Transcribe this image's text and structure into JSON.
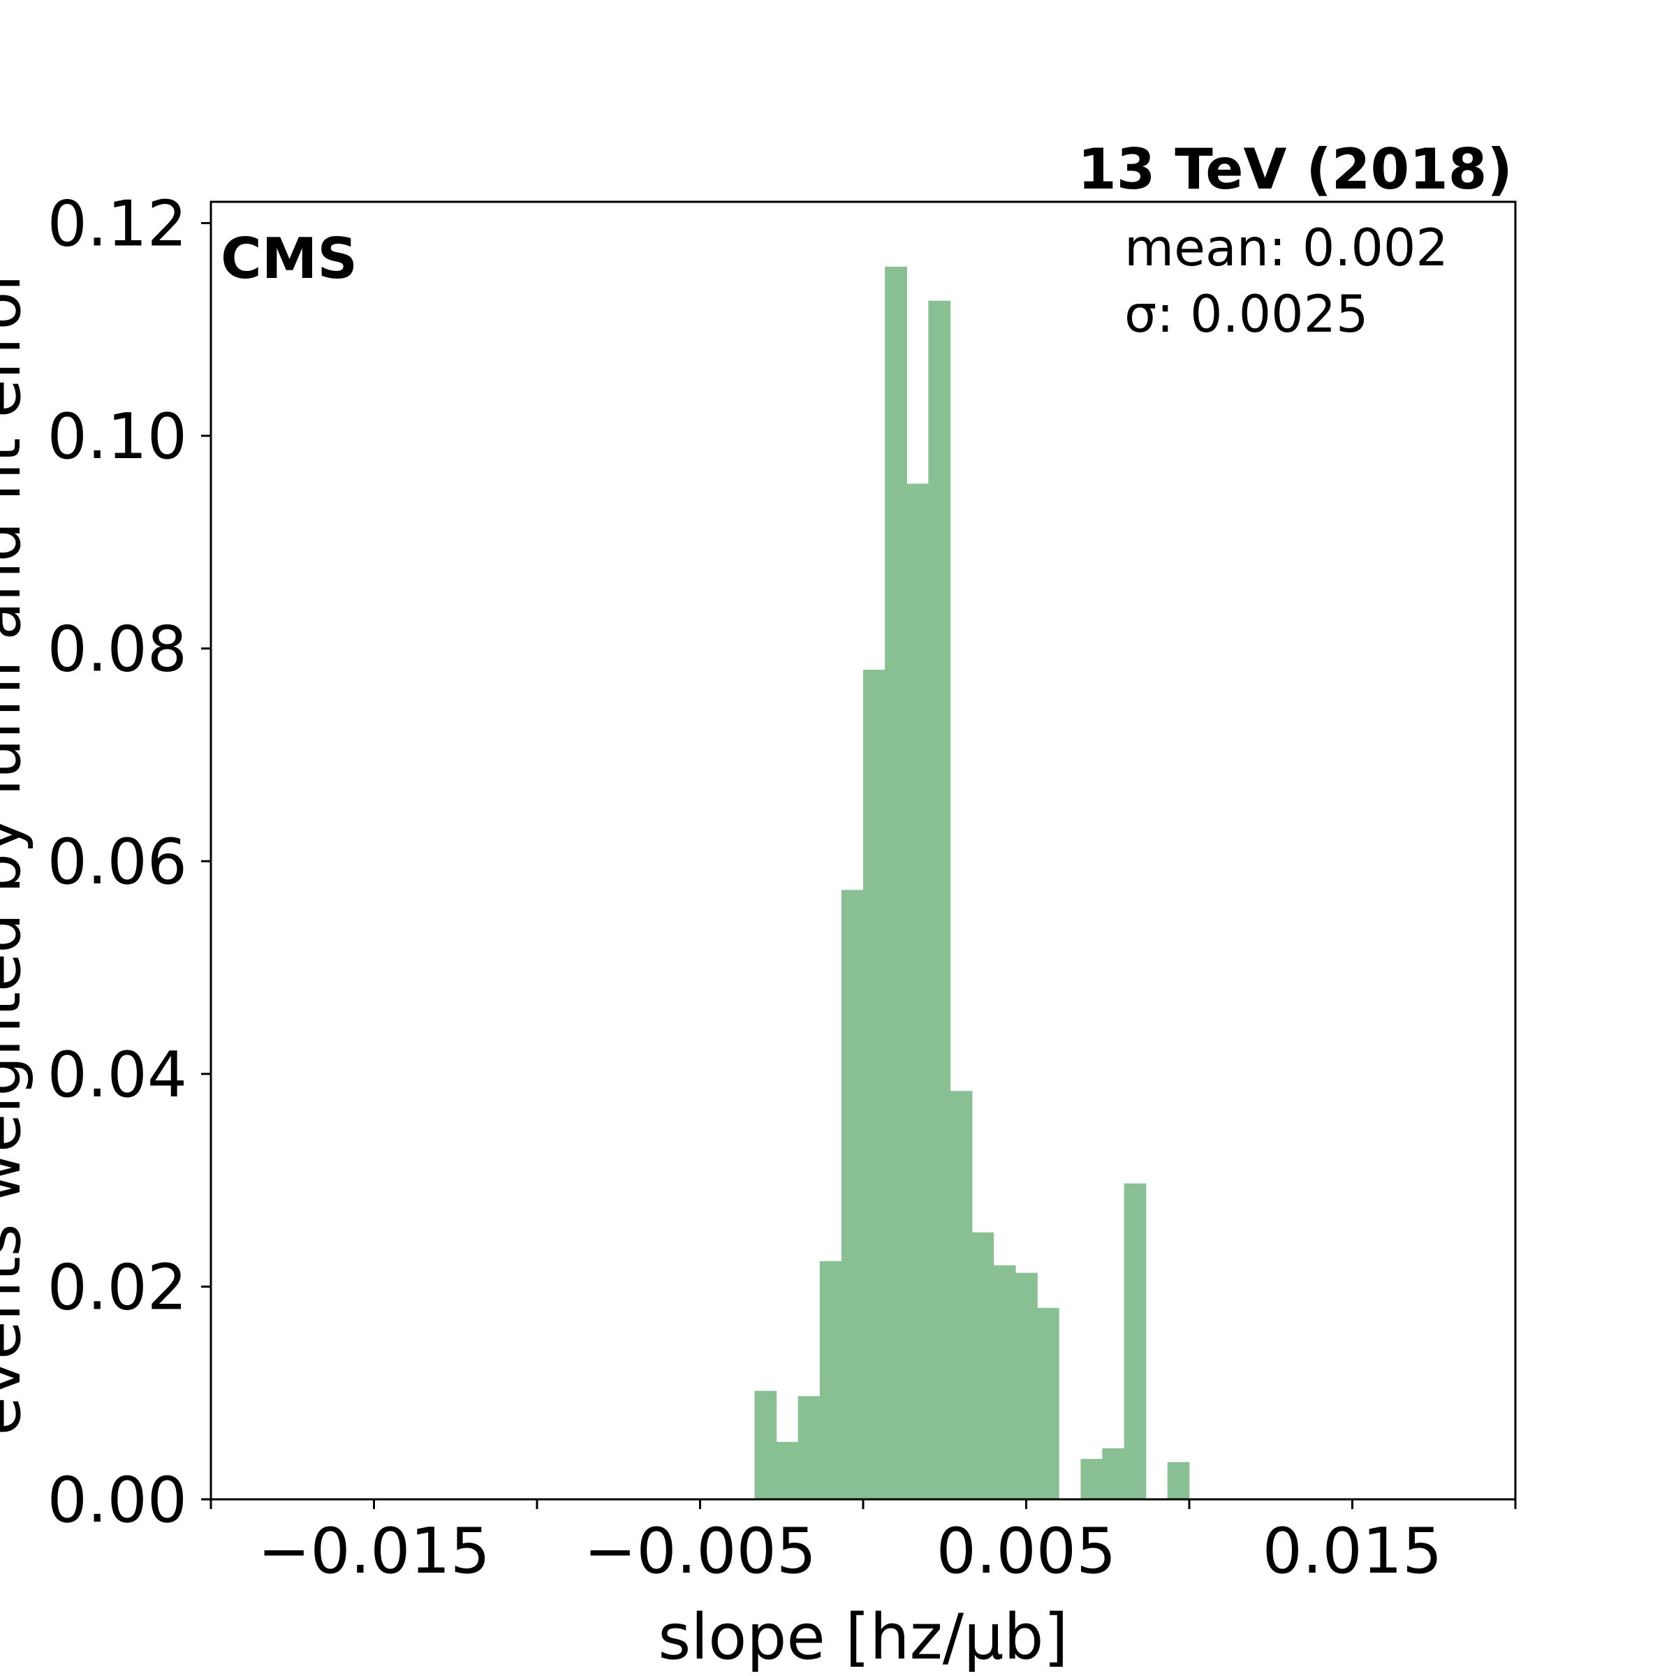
{
  "chart_data": {
    "type": "bar",
    "title": "13 TeV (2018)",
    "experiment_label": "CMS",
    "xlabel": "slope [hz/μb]",
    "ylabel": "events weighted by lumi and fit error",
    "xlim": [
      -0.02,
      0.02
    ],
    "ylim": [
      0,
      0.122
    ],
    "xticks": [
      -0.02,
      -0.015,
      -0.01,
      -0.005,
      0,
      0.005,
      0.01,
      0.015,
      0.02
    ],
    "xtick_labels": [
      "−0.015",
      "−0.005",
      "0.005",
      "0.015"
    ],
    "xtick_label_values": [
      -0.015,
      -0.005,
      0.005,
      0.015
    ],
    "yticks": [
      0,
      0.02,
      0.04,
      0.06,
      0.08,
      0.1,
      0.12
    ],
    "ytick_labels": [
      "0.00",
      "0.02",
      "0.04",
      "0.06",
      "0.08",
      "0.10",
      "0.12"
    ],
    "grid": false,
    "bar_color": "#88bf93",
    "bin_width": 0.000667,
    "bins": [
      {
        "x0": -0.00333,
        "value": 0.0102
      },
      {
        "x0": -0.00267,
        "value": 0.0054
      },
      {
        "x0": -0.002,
        "value": 0.0097
      },
      {
        "x0": -0.00133,
        "value": 0.0224
      },
      {
        "x0": -0.000667,
        "value": 0.0573
      },
      {
        "x0": 0.0,
        "value": 0.078
      },
      {
        "x0": 0.000667,
        "value": 0.1159
      },
      {
        "x0": 0.00133,
        "value": 0.0955
      },
      {
        "x0": 0.002,
        "value": 0.1127
      },
      {
        "x0": 0.00267,
        "value": 0.0384
      },
      {
        "x0": 0.00333,
        "value": 0.0251
      },
      {
        "x0": 0.004,
        "value": 0.022
      },
      {
        "x0": 0.00467,
        "value": 0.0213
      },
      {
        "x0": 0.00533,
        "value": 0.018
      },
      {
        "x0": 0.006,
        "value": 0.0
      },
      {
        "x0": 0.00667,
        "value": 0.0038
      },
      {
        "x0": 0.00733,
        "value": 0.0048
      },
      {
        "x0": 0.008,
        "value": 0.0297
      },
      {
        "x0": 0.00867,
        "value": 0.0
      },
      {
        "x0": 0.00933,
        "value": 0.0035
      }
    ],
    "annotations": {
      "mean": "mean: 0.002",
      "sigma": "σ: 0.0025"
    }
  }
}
